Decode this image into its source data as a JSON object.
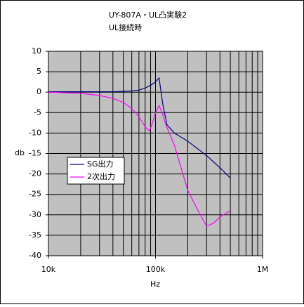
{
  "chart_data": {
    "type": "line",
    "title": "UY-807A・UL凸実験2",
    "subtitle": "UL接続時",
    "x_label": "Hz",
    "y_label": "db",
    "xscale": "log",
    "xlim": [
      10000,
      1000000
    ],
    "xticks": [
      {
        "value": 10000,
        "label": "10k"
      },
      {
        "value": 100000,
        "label": "100k"
      },
      {
        "value": 1000000,
        "label": "1M"
      }
    ],
    "ylim": [
      -40,
      10
    ],
    "yticks": [
      10,
      5,
      0,
      -5,
      -10,
      -15,
      -20,
      -25,
      -30,
      -35,
      -40
    ],
    "grid": true,
    "minor_grid": true,
    "legend": "center-left",
    "series": [
      {
        "name": "SG出力",
        "color": "#000080",
        "x": [
          10000,
          20000,
          30000,
          40000,
          50000,
          60000,
          70000,
          80000,
          90000,
          100000,
          108000,
          117000,
          128000,
          150000,
          200000,
          300000,
          400000,
          500000
        ],
        "values": [
          0.1,
          0.1,
          0.1,
          0.1,
          0.2,
          0.3,
          0.5,
          1,
          1.7,
          2.5,
          3.5,
          -3,
          -8,
          -10,
          -12,
          -15.5,
          -18.5,
          -21
        ]
      },
      {
        "name": "2次出力",
        "color": "#ff00ff",
        "x": [
          10000,
          20000,
          30000,
          40000,
          50000,
          60000,
          70000,
          80000,
          88000,
          95000,
          100000,
          108000,
          115000,
          125000,
          150000,
          200000,
          250000,
          300000,
          350000,
          400000,
          500000
        ],
        "values": [
          0,
          -0.3,
          -0.8,
          -1.5,
          -2.5,
          -4,
          -6,
          -8.5,
          -9.5,
          -7,
          -5,
          -3.3,
          -5,
          -8,
          -13,
          -24,
          -29,
          -32.8,
          -32,
          -30.5,
          -29
        ]
      }
    ]
  }
}
